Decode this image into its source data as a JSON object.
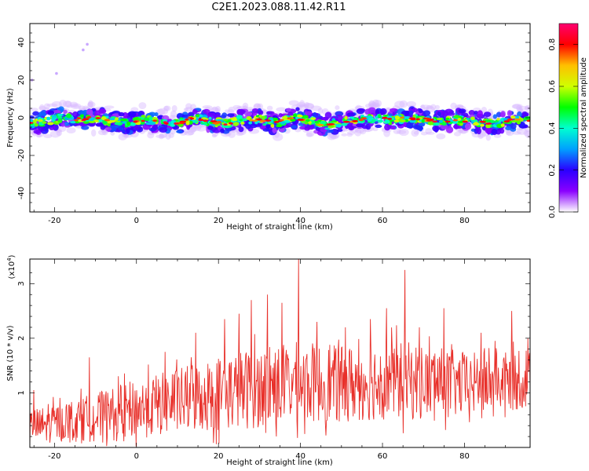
{
  "title": "C2E1.2023.088.11.42.R11",
  "chart_data": [
    {
      "type": "heatmap",
      "title": "C2E1.2023.088.11.42.R11",
      "xlabel": "Height of straight line (km)",
      "ylabel": "Frequency (Hz)",
      "xlim": [
        -26,
        96
      ],
      "ylim": [
        -50,
        50
      ],
      "x_ticks": [
        "-20",
        "0",
        "20",
        "40",
        "60",
        "80"
      ],
      "y_ticks": [
        "-40",
        "-20",
        "0",
        "20",
        "40"
      ],
      "colorbar": {
        "label": "Normalized spectral amplitude",
        "range": [
          0.0,
          0.9
        ],
        "ticks": [
          "0.0",
          "0.2",
          "0.4",
          "0.6",
          "0.8"
        ],
        "colors": [
          "#ffffff",
          "#8a00ff",
          "#2a00ff",
          "#00a0ff",
          "#00ffd0",
          "#00ff00",
          "#d0ff00",
          "#ffc000",
          "#ff0000",
          "#ff0070"
        ]
      },
      "ridge": {
        "x": [
          -26,
          -22,
          -18,
          -14,
          -10,
          -6,
          -2,
          2,
          6,
          10,
          14,
          18,
          22,
          26,
          30,
          34,
          38,
          42,
          46,
          50,
          54,
          58,
          62,
          66,
          70,
          74,
          78,
          82,
          86,
          90,
          94,
          96
        ],
        "y": [
          -3,
          -2,
          0,
          -1,
          0,
          -2,
          -3,
          -1,
          -2,
          -3,
          0,
          -2,
          -3,
          -1,
          -1,
          -3,
          0,
          -1,
          -4,
          -2,
          -1,
          0,
          -1,
          0,
          -1,
          -2,
          -1,
          -2,
          -3,
          -2,
          -1,
          -1
        ]
      },
      "grid": false,
      "legend": "colorbar-right"
    },
    {
      "type": "line",
      "xlabel": "Height of straight line (km)",
      "ylabel": "SNR (10 * v/v)",
      "y_multiplier": "(x10",
      "y_multiplier_exp": "4",
      "y_multiplier_close": ")",
      "xlim": [
        -26,
        96
      ],
      "ylim": [
        0,
        3.45
      ],
      "x_ticks": [
        "-20",
        "0",
        "20",
        "40",
        "60",
        "80"
      ],
      "y_ticks": [
        "1",
        "2",
        "3"
      ],
      "color": "#e8302a",
      "envelope_x": [
        -26,
        -20,
        -10,
        0,
        10,
        20,
        30,
        40,
        50,
        60,
        70,
        80,
        90,
        96
      ],
      "envelope_mean": [
        0.35,
        0.45,
        0.55,
        0.7,
        0.85,
        1.0,
        1.1,
        1.2,
        1.15,
        1.25,
        1.2,
        1.15,
        1.2,
        1.2
      ],
      "envelope_amp": [
        0.35,
        0.35,
        0.45,
        0.55,
        0.6,
        0.7,
        0.75,
        0.75,
        0.7,
        0.75,
        0.7,
        0.6,
        0.55,
        0.5
      ],
      "peaks": [
        {
          "x": -25,
          "y": 1.05
        },
        {
          "x": -11.5,
          "y": 1.65
        },
        {
          "x": 7,
          "y": 1.75
        },
        {
          "x": 14.5,
          "y": 2.1
        },
        {
          "x": 21.5,
          "y": 2.35
        },
        {
          "x": 25,
          "y": 2.45
        },
        {
          "x": 28,
          "y": 2.7
        },
        {
          "x": 32,
          "y": 2.8
        },
        {
          "x": 35.5,
          "y": 2.65
        },
        {
          "x": 39.5,
          "y": 3.45
        },
        {
          "x": 44,
          "y": 2.3
        },
        {
          "x": 51,
          "y": 2.2
        },
        {
          "x": 57,
          "y": 2.35
        },
        {
          "x": 61,
          "y": 2.55
        },
        {
          "x": 65.5,
          "y": 3.25
        },
        {
          "x": 69,
          "y": 2.2
        },
        {
          "x": 75,
          "y": 2.55
        },
        {
          "x": 84,
          "y": 2.1
        },
        {
          "x": 87.5,
          "y": 1.95
        },
        {
          "x": 91.5,
          "y": 2.5
        },
        {
          "x": 95.5,
          "y": 2.0
        }
      ],
      "samples": 900,
      "grid": false
    }
  ]
}
